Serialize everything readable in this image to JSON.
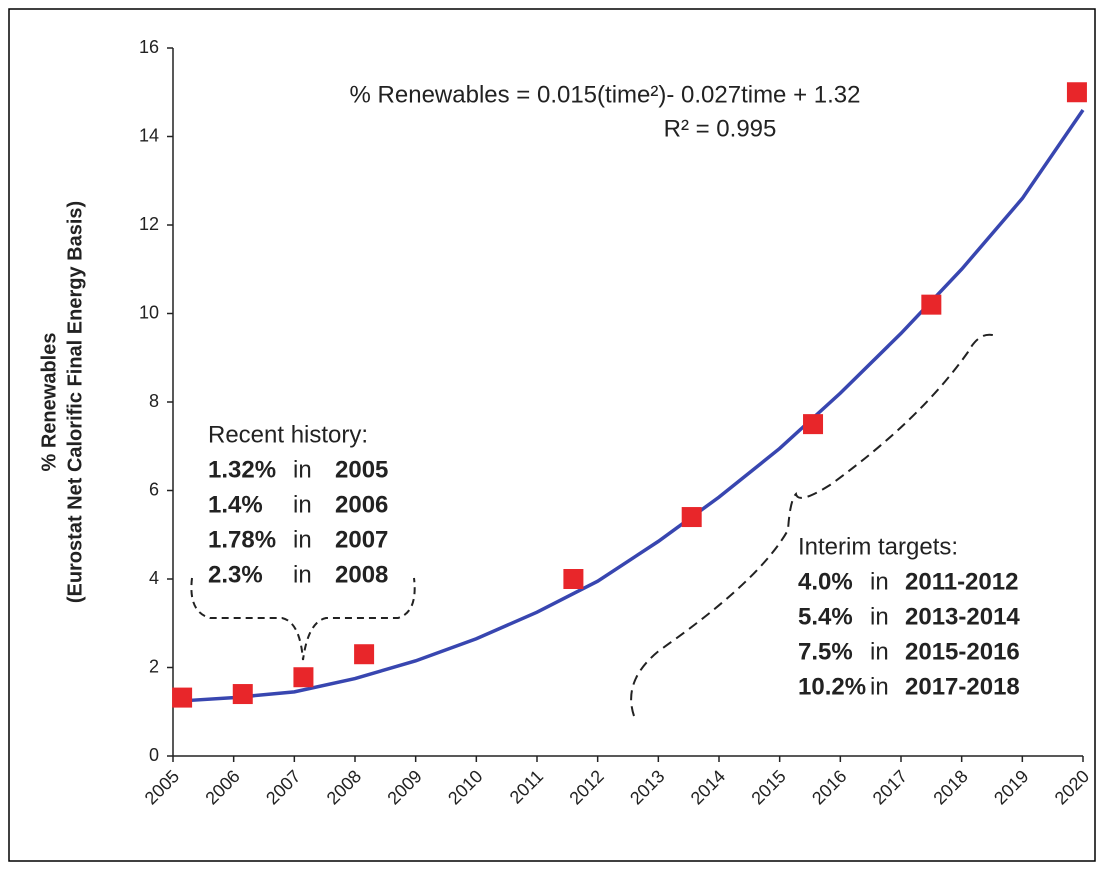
{
  "chart_data": {
    "type": "scatter",
    "y_label": [
      "% Renewables",
      "(Eurostat Net Calorific Final Energy Basis)"
    ],
    "xlim": [
      2005,
      2020
    ],
    "xticks": [
      2005,
      2006,
      2007,
      2008,
      2009,
      2010,
      2011,
      2012,
      2013,
      2014,
      2015,
      2016,
      2017,
      2018,
      2019,
      2020
    ],
    "ylim": [
      0,
      16
    ],
    "yticks": [
      0,
      2,
      4,
      6,
      8,
      10,
      12,
      14,
      16
    ],
    "grid": false,
    "series": [
      {
        "kind": "markers",
        "color": "#e8262a",
        "x": [
          2005.15,
          2006.15,
          2007.15,
          2008.15,
          2011.6,
          2013.55,
          2015.55,
          2017.5,
          2019.9
        ],
        "values": [
          1.32,
          1.4,
          1.78,
          2.3,
          4.0,
          5.4,
          7.5,
          10.2,
          15.0
        ]
      },
      {
        "kind": "line",
        "color": "#3846b0",
        "x": [
          2005.2,
          2006,
          2007,
          2008,
          2009,
          2010,
          2011,
          2012,
          2013,
          2014,
          2015,
          2016,
          2017,
          2018,
          2019,
          2020
        ],
        "values": [
          1.25,
          1.32,
          1.45,
          1.75,
          2.15,
          2.65,
          3.25,
          3.95,
          4.85,
          5.85,
          6.95,
          8.2,
          9.55,
          11.0,
          12.6,
          14.6
        ]
      }
    ],
    "equation": [
      "% Renewables = 0.015(time²)- 0.027time + 1.32",
      "R² = 0.995"
    ],
    "history": {
      "title": "Recent history:",
      "rows": [
        [
          "1.32%",
          "in",
          "2005"
        ],
        [
          "1.4%",
          "in",
          "2006"
        ],
        [
          "1.78%",
          "in",
          "2007"
        ],
        [
          "2.3%",
          "in",
          "2008"
        ]
      ]
    },
    "targets": {
      "title": "Interim targets:",
      "rows": [
        [
          "4.0%",
          "in",
          "2011-2012"
        ],
        [
          "5.4%",
          "in",
          "2013-2014"
        ],
        [
          "7.5%",
          "in",
          "2015-2016"
        ],
        [
          "10.2%",
          "in",
          "2017-2018"
        ]
      ]
    }
  }
}
